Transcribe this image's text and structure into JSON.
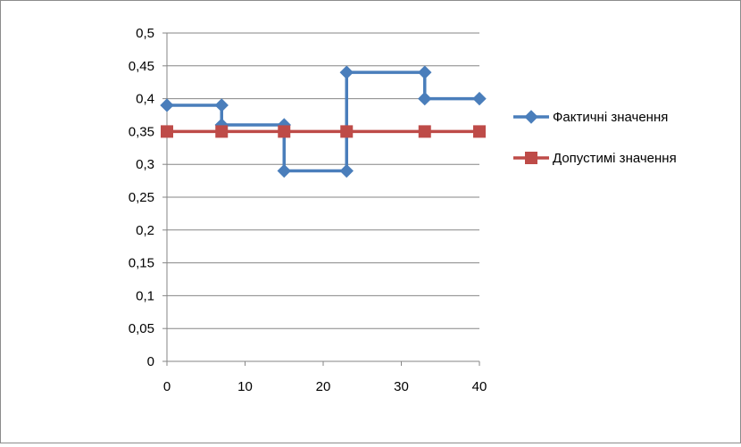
{
  "chart_data": {
    "type": "scatter",
    "title": "",
    "xlabel": "",
    "ylabel": "",
    "xlim": [
      0,
      40
    ],
    "ylim": [
      0,
      0.5
    ],
    "x_ticks": [
      0,
      10,
      20,
      30,
      40
    ],
    "y_ticks": [
      0,
      0.05,
      0.1,
      0.15,
      0.2,
      0.25,
      0.3,
      0.35,
      0.4,
      0.45,
      0.5
    ],
    "x_tick_labels": [
      "0",
      "10",
      "20",
      "30",
      "40"
    ],
    "y_tick_labels": [
      "0",
      "0,05",
      "0,1",
      "0,15",
      "0,2",
      "0,25",
      "0,3",
      "0,35",
      "0,4",
      "0,45",
      "0,5"
    ],
    "grid": "horizontal",
    "legend_position": "right",
    "series": [
      {
        "name": "Фактичні значення",
        "color": "#4a7ebb",
        "marker": "diamond",
        "x": [
          0,
          7,
          7,
          15,
          15,
          23,
          23,
          33,
          33,
          40
        ],
        "y": [
          0.39,
          0.39,
          0.36,
          0.36,
          0.29,
          0.29,
          0.44,
          0.44,
          0.4,
          0.4
        ]
      },
      {
        "name": "Допустимі значення",
        "color": "#be4b48",
        "marker": "square",
        "x": [
          0,
          7,
          15,
          23,
          33,
          40
        ],
        "y": [
          0.35,
          0.35,
          0.35,
          0.35,
          0.35,
          0.35
        ]
      }
    ]
  }
}
